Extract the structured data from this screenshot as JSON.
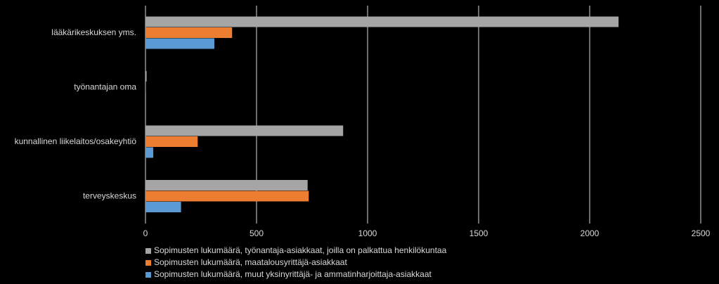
{
  "chart_data": {
    "type": "hbar",
    "categories": [
      "lääkärikeskuksen yms.",
      "työnantajan oma",
      "kunnallinen liikelaitos/osakeyhtiö",
      "terveyskeskus"
    ],
    "series": [
      {
        "name": "Sopimusten lukumäärä, työnantaja-asiakkaat, joilla on palkattua henkilökuntaa",
        "color": "#a5a5a5",
        "values": [
          2130,
          5,
          890,
          730
        ]
      },
      {
        "name": "Sopimusten lukumäärä, maatalousyrittäjä-asiakkaat",
        "color": "#ed7d31",
        "values": [
          390,
          2,
          235,
          735
        ]
      },
      {
        "name": "Sopimusten lukumäärä, muut yksinyrittäjä- ja ammatinharjoittaja-asiakkaat",
        "color": "#5b9bd5",
        "values": [
          310,
          0,
          35,
          160
        ]
      }
    ],
    "xlim": [
      0,
      2500
    ],
    "xticks": [
      0,
      500,
      1000,
      1500,
      2000,
      2500
    ],
    "grid": true
  }
}
